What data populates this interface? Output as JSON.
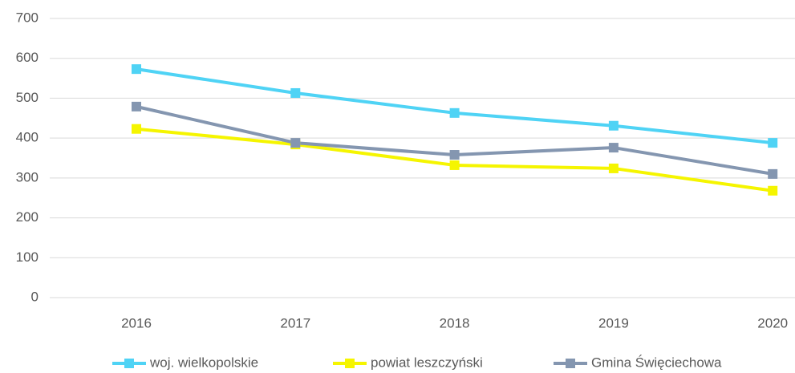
{
  "chart_data": {
    "type": "line",
    "categories": [
      "2016",
      "2017",
      "2018",
      "2019",
      "2020"
    ],
    "series": [
      {
        "name": "woj. wielkopolskie",
        "color": "#4fd3f5",
        "values": [
          573,
          513,
          463,
          431,
          388
        ]
      },
      {
        "name": "powiat leszczyński",
        "color": "#f5f500",
        "values": [
          423,
          384,
          332,
          324,
          268
        ]
      },
      {
        "name": "Gmina Święciechowa",
        "color": "#8496b0",
        "values": [
          479,
          388,
          358,
          376,
          310
        ]
      }
    ],
    "ylim": [
      0,
      700
    ],
    "yticks": [
      0,
      100,
      200,
      300,
      400,
      500,
      600,
      700
    ],
    "grid": true,
    "legend": "bottom"
  }
}
